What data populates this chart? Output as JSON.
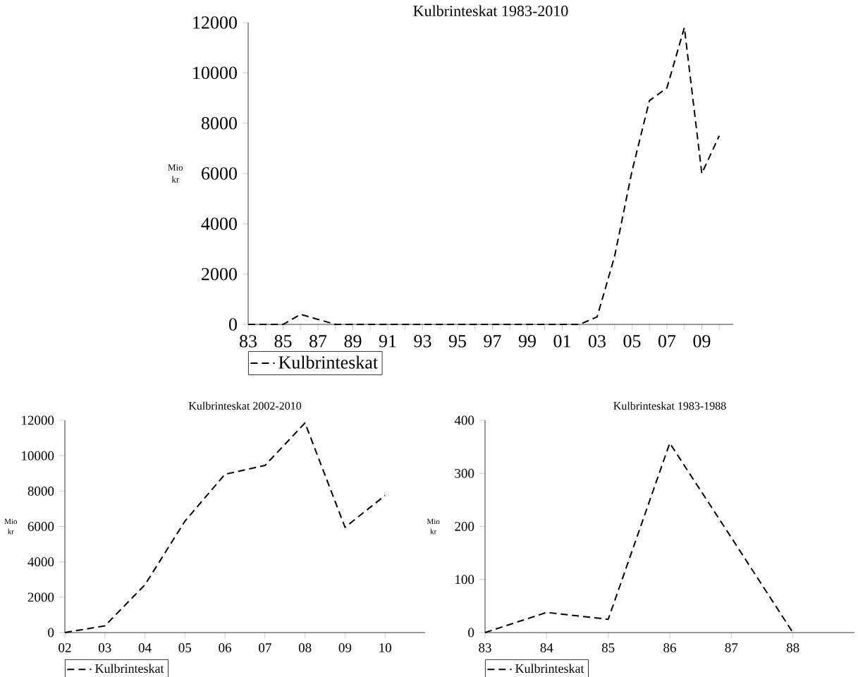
{
  "chart_data": [
    {
      "type": "line",
      "title": "Kulbrinteskat 1983-2010",
      "ylabel": "Mio kr",
      "categories": [
        "83",
        null,
        "85",
        null,
        "87",
        null,
        "89",
        null,
        "91",
        null,
        "93",
        null,
        "95",
        null,
        "97",
        null,
        "99",
        null,
        "01",
        null,
        "03",
        null,
        "05",
        null,
        "07",
        null,
        "09",
        null
      ],
      "series": [
        {
          "name": "Kulbrinteskat",
          "color": "#000000",
          "values": [
            0,
            0,
            0,
            400,
            200,
            0,
            0,
            0,
            0,
            0,
            0,
            0,
            0,
            0,
            0,
            0,
            0,
            0,
            0,
            0,
            300,
            2700,
            6100,
            8900,
            9400,
            11800,
            6000,
            7500
          ]
        }
      ],
      "ylim": [
        0,
        12000
      ],
      "yticks": [
        0,
        2000,
        4000,
        6000,
        8000,
        10000,
        12000
      ],
      "line_style": "dashed",
      "legend": "bottom left"
    },
    {
      "type": "line",
      "title": "Kulbrinteskat 2002-2010",
      "ylabel": "Mio kr",
      "categories": [
        "02",
        "03",
        "04",
        "05",
        "06",
        "07",
        "08",
        "09",
        "10"
      ],
      "series": [
        {
          "name": "Kulbrinteskat",
          "color": "#000000",
          "values": [
            0,
            380,
            2700,
            6300,
            8950,
            9450,
            11850,
            5950,
            7750
          ]
        }
      ],
      "ylim": [
        0,
        12000
      ],
      "yticks": [
        0,
        2000,
        4000,
        6000,
        8000,
        10000,
        12000
      ],
      "line_style": "dashed",
      "legend": "bottom left"
    },
    {
      "type": "line",
      "title": "Kulbrinteskat 1983-1988",
      "ylabel": "Mio kr",
      "categories": [
        "83",
        "84",
        "85",
        "86",
        "87",
        "88"
      ],
      "series": [
        {
          "name": "Kulbrinteskat",
          "color": "#000000",
          "values": [
            0,
            38,
            25,
            357,
            179,
            0
          ]
        }
      ],
      "ylim": [
        0,
        400
      ],
      "yticks": [
        0,
        100,
        200,
        300,
        400
      ],
      "line_style": "dashed",
      "legend": "bottom left"
    }
  ]
}
